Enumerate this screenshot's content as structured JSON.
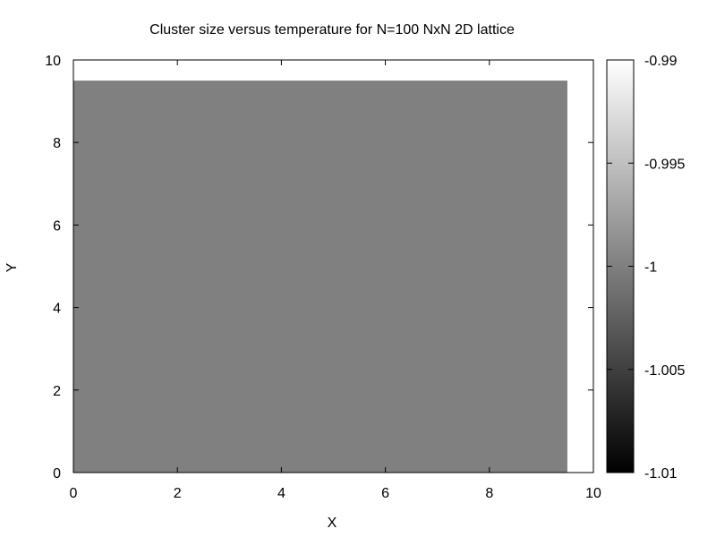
{
  "chart_data": {
    "type": "heatmap",
    "title": "Cluster size versus temperature for N=100 NxN 2D lattice",
    "xlabel": "X",
    "ylabel": "Y",
    "xlim": [
      0,
      10
    ],
    "ylim": [
      0,
      10
    ],
    "xticks": [
      0,
      2,
      4,
      6,
      8,
      10
    ],
    "yticks": [
      0,
      2,
      4,
      6,
      8,
      10
    ],
    "x_tick_labels": [
      "0",
      "2",
      "4",
      "6",
      "8",
      "10"
    ],
    "y_tick_labels": [
      "0",
      "2",
      "4",
      "6",
      "8",
      "10"
    ],
    "grid": false,
    "cells": [
      {
        "x": [
          0,
          9.5
        ],
        "y": [
          0,
          9.5
        ],
        "value": -1
      }
    ],
    "colorbar": {
      "range": [
        -1.01,
        -0.99
      ],
      "ticks": [
        -0.99,
        -0.995,
        -1,
        -1.005,
        -1.01
      ],
      "tick_labels": [
        "-0.99",
        "-0.995",
        "-1",
        "-1.005",
        "-1.01"
      ],
      "palette": "gray",
      "low_color": "#000000",
      "high_color": "#ffffff"
    }
  }
}
